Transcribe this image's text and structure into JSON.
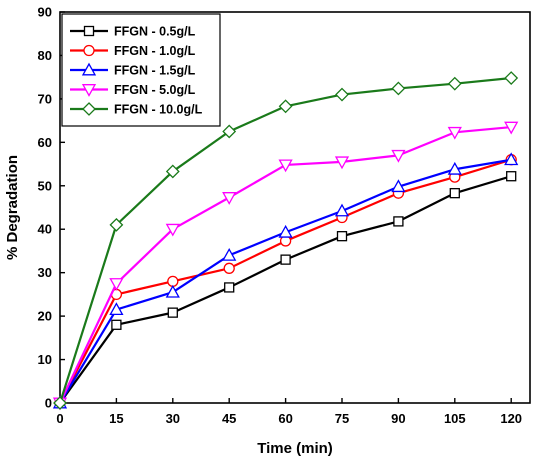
{
  "chart_data": {
    "type": "line",
    "title": "",
    "xlabel": "Time (min)",
    "ylabel": "% Degradation",
    "xlim": [
      0,
      125
    ],
    "ylim": [
      0,
      90
    ],
    "x_ticks": [
      0,
      15,
      30,
      45,
      60,
      75,
      90,
      105,
      120
    ],
    "y_ticks": [
      0,
      10,
      20,
      30,
      40,
      50,
      60,
      70,
      80,
      90
    ],
    "grid": false,
    "legend_position": "top-left",
    "x": [
      0,
      15,
      30,
      45,
      60,
      75,
      90,
      105,
      120
    ],
    "series": [
      {
        "name": "FFGN - 0.5g/L",
        "color": "#000000",
        "marker": "square",
        "values": [
          0,
          18.0,
          20.8,
          26.6,
          33.0,
          38.4,
          41.8,
          48.3,
          52.2
        ]
      },
      {
        "name": "FFGN - 1.0g/L",
        "color": "#ff0000",
        "marker": "circle",
        "values": [
          0,
          25.0,
          28.0,
          31.0,
          37.3,
          42.7,
          48.3,
          52.0,
          56.0
        ]
      },
      {
        "name": "FFGN - 1.5g/L",
        "color": "#0000ff",
        "marker": "triangle-up",
        "values": [
          0,
          21.5,
          25.5,
          34.0,
          39.3,
          44.2,
          49.8,
          53.8,
          56.0
        ]
      },
      {
        "name": "FFGN - 5.0g/L",
        "color": "#ff00ff",
        "marker": "triangle-down",
        "values": [
          0,
          27.5,
          40.0,
          47.3,
          54.8,
          55.5,
          57.0,
          62.3,
          63.5
        ]
      },
      {
        "name": "FFGN - 10.0g/L",
        "color": "#1a7a1a",
        "marker": "diamond",
        "values": [
          0,
          41.0,
          53.3,
          62.5,
          68.3,
          71.0,
          72.4,
          73.5,
          74.8
        ]
      }
    ]
  }
}
